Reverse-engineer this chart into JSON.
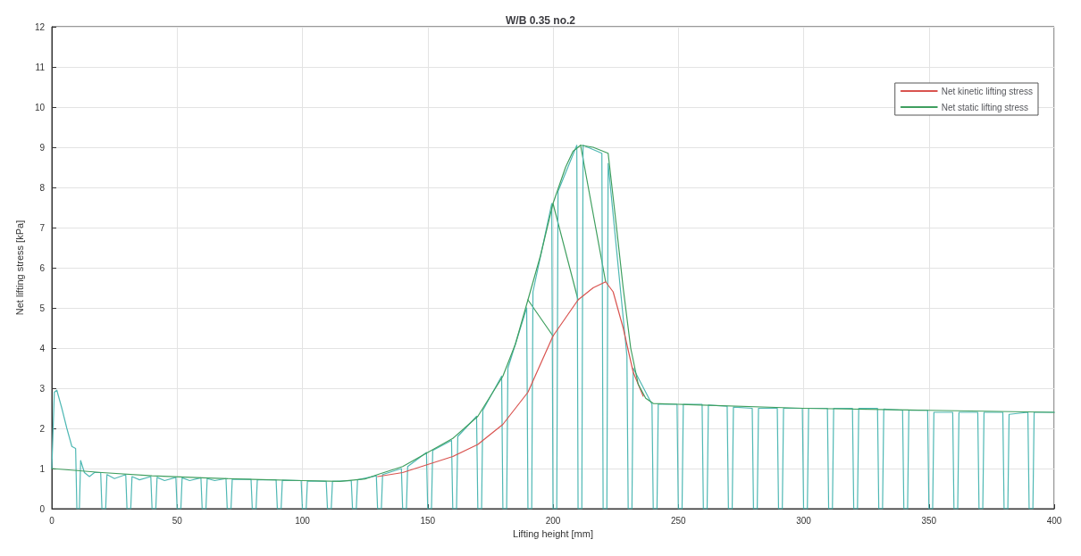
{
  "chart_data": {
    "type": "line",
    "title": "W/B 0.35 no.2",
    "xlabel": "Lifting height [mm]",
    "ylabel": "Net lifting stress [kPa]",
    "xlim": [
      0,
      400
    ],
    "xticks": [
      0,
      50,
      100,
      150,
      200,
      250,
      300,
      350,
      400
    ],
    "ylim": [
      0,
      12
    ],
    "yticks": [
      0,
      1,
      2,
      3,
      4,
      5,
      6,
      7,
      8,
      9,
      10,
      11,
      12
    ],
    "grid": true,
    "legend": "top right",
    "marker": "none",
    "line_style": "solid",
    "series": [
      {
        "name": "Net kinetic lifting stress",
        "color": "#d9534f",
        "x": [
          130,
          140,
          150,
          160,
          170,
          180,
          190,
          200,
          210,
          216,
          221,
          224,
          228,
          232,
          236
        ],
        "values": [
          0.8,
          0.9,
          1.1,
          1.3,
          1.6,
          2.1,
          2.9,
          4.3,
          5.2,
          5.5,
          5.65,
          5.4,
          4.5,
          3.4,
          2.8
        ]
      },
      {
        "name": "Net static lifting stress",
        "color": "#3f9f5f",
        "x": [
          0,
          20,
          40,
          60,
          80,
          100,
          115,
          125,
          130,
          140,
          150,
          160,
          170,
          180,
          185,
          190,
          195,
          200,
          205,
          208,
          211,
          216,
          222,
          225,
          228,
          231,
          234,
          237,
          240,
          250,
          300,
          350,
          400
        ],
        "values": [
          1.0,
          0.9,
          0.82,
          0.77,
          0.73,
          0.7,
          0.68,
          0.74,
          0.85,
          1.05,
          1.4,
          1.75,
          2.3,
          3.3,
          4.1,
          5.2,
          6.3,
          7.6,
          8.5,
          8.9,
          9.05,
          9.0,
          8.85,
          7.2,
          5.5,
          4.0,
          3.1,
          2.75,
          2.62,
          2.6,
          2.5,
          2.45,
          2.4
        ]
      },
      {
        "color": "#3f9f5f",
        "x": [
          190,
          200
        ],
        "values": [
          5.2,
          4.3
        ]
      },
      {
        "color": "#3f9f5f",
        "x": [
          200,
          210
        ],
        "values": [
          7.6,
          5.2
        ]
      },
      {
        "color": "#3f9f5f",
        "x": [
          211,
          221
        ],
        "values": [
          9.05,
          5.65
        ]
      },
      {
        "color": "#4fb8b4",
        "x": [
          0,
          1,
          2,
          4,
          6,
          8,
          9.5,
          10,
          11,
          11.5,
          13,
          15,
          17,
          19.5,
          20,
          21.5,
          22,
          25,
          29.5,
          30,
          31.5,
          32,
          35,
          39.5,
          40,
          41.5,
          42,
          45,
          49.5,
          50,
          51.5,
          52,
          55,
          59.5,
          60,
          61.5,
          62,
          65,
          69.5,
          70,
          71.5,
          72,
          79.5,
          80,
          81.5,
          82,
          89.5,
          90,
          91.5,
          92,
          99.5,
          100,
          101.5,
          102,
          109.5,
          110,
          111.5,
          112,
          119.5,
          120,
          121.5,
          122,
          129.5,
          130,
          131.5,
          132,
          139.5,
          140,
          141.5,
          142,
          149.5,
          150,
          151.5,
          152,
          159.5,
          160,
          161.5,
          162,
          169.5,
          170,
          171.5,
          172,
          179.5,
          180,
          181.5,
          182,
          189.5,
          190,
          191.5,
          192,
          199.5,
          200,
          201.5,
          202,
          209.5,
          210,
          211.5,
          212,
          219.5,
          220,
          221.5,
          222,
          229.5,
          230,
          231.5,
          232,
          239.5,
          240,
          241.5,
          242,
          249.5,
          250,
          251.5,
          252,
          259.5,
          260,
          261.5,
          262,
          269.5,
          270,
          271.5,
          272,
          279.5,
          280,
          281.5,
          282,
          289.5,
          290,
          291.5,
          292,
          299.5,
          300,
          301.5,
          302,
          309.5,
          310,
          311.5,
          312,
          319.5,
          320,
          321.5,
          322,
          329.5,
          330,
          331.5,
          332,
          339.5,
          340,
          341.5,
          342,
          349.5,
          350,
          351.5,
          352,
          359.5,
          360,
          361.5,
          362,
          369.5,
          370,
          371.5,
          372,
          379.5,
          380,
          381.5,
          382,
          389.5,
          390,
          391.5,
          392,
          400
        ],
        "values": [
          1.0,
          2.9,
          2.95,
          2.5,
          2.0,
          1.55,
          1.5,
          0,
          0,
          1.2,
          0.9,
          0.8,
          0.9,
          0.9,
          0,
          0,
          0.85,
          0.75,
          0.85,
          0,
          0,
          0.8,
          0.72,
          0.8,
          0,
          0,
          0.78,
          0.7,
          0.78,
          0,
          0,
          0.77,
          0.7,
          0.77,
          0,
          0,
          0.75,
          0.7,
          0.75,
          0,
          0,
          0.73,
          0.73,
          0,
          0,
          0.72,
          0.72,
          0,
          0,
          0.71,
          0.7,
          0,
          0,
          0.69,
          0.68,
          0,
          0,
          0.68,
          0.7,
          0,
          0,
          0.72,
          0.82,
          0,
          0,
          0.85,
          1.0,
          0,
          0,
          1.05,
          1.4,
          0,
          0,
          1.45,
          1.7,
          0,
          0,
          1.8,
          2.3,
          0,
          0,
          2.45,
          3.3,
          0,
          0,
          3.5,
          5.0,
          0,
          0,
          5.4,
          7.6,
          0,
          0,
          7.9,
          9.05,
          0,
          0,
          9.05,
          8.85,
          0,
          0,
          8.6,
          3.8,
          0,
          0,
          3.5,
          2.6,
          0,
          0,
          2.6,
          2.6,
          0,
          0,
          2.6,
          2.6,
          0,
          0,
          2.58,
          2.55,
          0,
          0,
          2.53,
          2.5,
          0,
          0,
          2.5,
          2.5,
          0,
          0,
          2.5,
          2.5,
          0,
          0,
          2.5,
          2.5,
          0,
          0,
          2.5,
          2.5,
          0,
          0,
          2.5,
          2.5,
          0,
          0,
          2.48,
          2.45,
          0,
          0,
          2.45,
          2.45,
          0,
          0,
          2.4,
          2.4,
          0,
          0,
          2.4,
          2.4,
          0,
          0,
          2.4,
          2.4,
          0,
          0,
          2.35,
          2.4,
          0,
          0,
          2.4,
          2.4
        ]
      }
    ]
  }
}
